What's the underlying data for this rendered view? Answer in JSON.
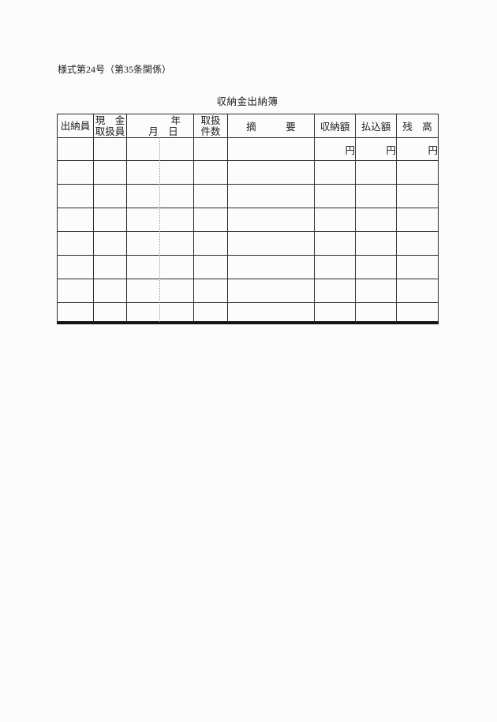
{
  "document": {
    "form_number": "様式第24号（第35条関係）",
    "title": "収納金出納簿"
  },
  "table": {
    "headers": {
      "cashier": "出納員",
      "cash_handler_line1": "現　金",
      "cash_handler_line2": "取扱員",
      "date_year": "年",
      "date_month_day": "月　日",
      "count_line1": "取扱",
      "count_line2": "件数",
      "summary": "摘　　　要",
      "receipt_amount": "収納額",
      "payment_amount": "払込額",
      "balance": "残　高"
    },
    "unit_label": "円",
    "empty_row_count": 7,
    "column_count": 8
  }
}
